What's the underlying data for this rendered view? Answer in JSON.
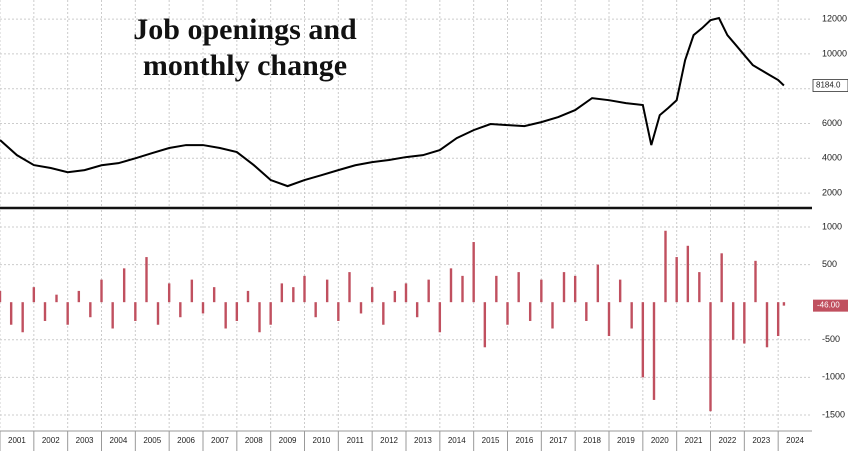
{
  "chart_data": [
    {
      "type": "line",
      "title": "Job openings and monthly change",
      "color": "#000000",
      "x": [
        2001,
        2001.5,
        2002,
        2002.5,
        2003,
        2003.5,
        2004,
        2004.5,
        2005,
        2005.5,
        2006,
        2006.5,
        2007,
        2007.5,
        2008,
        2008.5,
        2009,
        2009.5,
        2010,
        2010.5,
        2011,
        2011.5,
        2012,
        2012.5,
        2013,
        2013.5,
        2014,
        2014.5,
        2015,
        2015.5,
        2016,
        2016.5,
        2017,
        2017.5,
        2018,
        2018.5,
        2019,
        2019.5,
        2020,
        2020.25,
        2020.5,
        2020.75,
        2021,
        2021.25,
        2021.5,
        2021.75,
        2022,
        2022.25,
        2022.5,
        2022.75,
        2023,
        2023.25,
        2023.5,
        2023.75,
        2024,
        2024.17
      ],
      "values": [
        5050,
        4180,
        3610,
        3440,
        3200,
        3320,
        3600,
        3720,
        4000,
        4300,
        4590,
        4760,
        4760,
        4590,
        4360,
        3610,
        2750,
        2400,
        2750,
        3030,
        3320,
        3600,
        3780,
        3900,
        4070,
        4180,
        4470,
        5160,
        5620,
        5970,
        5910,
        5850,
        6080,
        6370,
        6770,
        7460,
        7340,
        7170,
        7060,
        4760,
        6480,
        6890,
        7340,
        9640,
        11080,
        11480,
        11940,
        12060,
        11080,
        10510,
        9930,
        9360,
        9070,
        8780,
        8500,
        8184
      ],
      "last_label": "8184.0",
      "xlim": [
        2001,
        2025
      ],
      "ylim": [
        1200,
        13100
      ],
      "yticks": [
        2000,
        4000,
        6000,
        8000,
        10000,
        12000
      ],
      "grid": true
    },
    {
      "type": "bar",
      "color": "#c0505f",
      "x": [
        2001,
        2001.33,
        2001.67,
        2002,
        2002.33,
        2002.67,
        2003,
        2003.33,
        2003.67,
        2004,
        2004.33,
        2004.67,
        2005,
        2005.33,
        2005.67,
        2006,
        2006.33,
        2006.67,
        2007,
        2007.33,
        2007.67,
        2008,
        2008.33,
        2008.67,
        2009,
        2009.33,
        2009.67,
        2010,
        2010.33,
        2010.67,
        2011,
        2011.33,
        2011.67,
        2012,
        2012.33,
        2012.67,
        2013,
        2013.33,
        2013.67,
        2014,
        2014.33,
        2014.67,
        2015,
        2015.33,
        2015.67,
        2016,
        2016.33,
        2016.67,
        2017,
        2017.33,
        2017.67,
        2018,
        2018.33,
        2018.67,
        2019,
        2019.33,
        2019.67,
        2020,
        2020.33,
        2020.67,
        2021,
        2021.33,
        2021.67,
        2022,
        2022.33,
        2022.67,
        2023,
        2023.33,
        2023.67,
        2024,
        2024.17
      ],
      "values": [
        150,
        -300,
        -400,
        200,
        -250,
        100,
        -300,
        150,
        -200,
        300,
        -350,
        450,
        -250,
        600,
        -300,
        250,
        -200,
        300,
        -150,
        200,
        -350,
        -250,
        150,
        -400,
        -300,
        250,
        200,
        350,
        -200,
        300,
        -250,
        400,
        -150,
        200,
        -300,
        150,
        250,
        -200,
        300,
        -400,
        450,
        350,
        800,
        -600,
        350,
        -300,
        400,
        -250,
        300,
        -350,
        400,
        350,
        -250,
        500,
        -450,
        300,
        -350,
        -1000,
        -1300,
        950,
        600,
        750,
        400,
        -1450,
        650,
        -500,
        -550,
        550,
        -600,
        -450,
        -46
      ],
      "last_label": "-46.00",
      "xlim": [
        2001,
        2025
      ],
      "ylim": [
        -1700,
        1226
      ],
      "yticks": [
        -1500,
        -1000,
        -500,
        500,
        1000
      ],
      "xticks": [
        2001,
        2002,
        2003,
        2004,
        2005,
        2006,
        2007,
        2008,
        2009,
        2010,
        2011,
        2012,
        2013,
        2014,
        2015,
        2016,
        2017,
        2018,
        2019,
        2020,
        2021,
        2022,
        2023,
        2024
      ],
      "grid": true
    }
  ]
}
